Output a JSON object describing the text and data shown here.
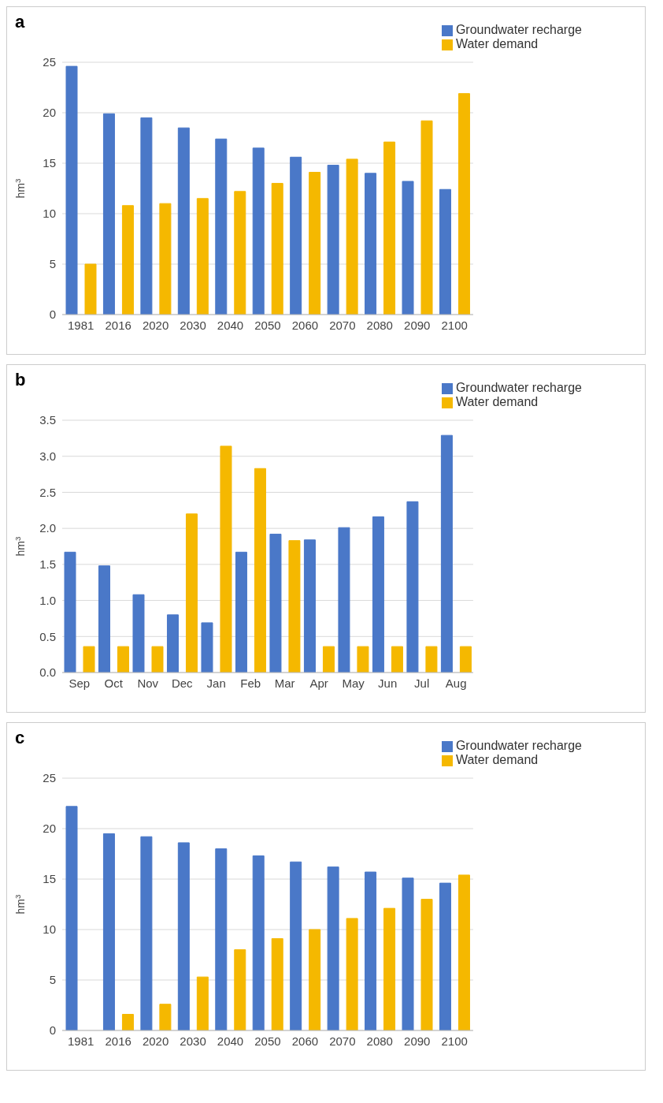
{
  "chart_data": [
    {
      "type": "bar",
      "title": "a",
      "ylabel": "hm$^{3}$",
      "categories": [
        "1981",
        "2016",
        "2020",
        "2030",
        "2040",
        "2050",
        "2060",
        "2070",
        "2080",
        "2090",
        "2100"
      ],
      "series": [
        {
          "name": "Groundwater recharge",
          "color": "#4a78c8",
          "values": [
            24.6,
            19.9,
            19.5,
            18.5,
            17.4,
            16.5,
            15.6,
            14.8,
            14.0,
            13.2,
            12.4
          ]
        },
        {
          "name": "Water demand",
          "color": "#f5b800",
          "values": [
            5.0,
            10.8,
            11.0,
            11.5,
            12.2,
            13.0,
            14.1,
            15.4,
            17.1,
            19.2,
            21.9
          ]
        }
      ],
      "ylim": [
        0,
        25
      ],
      "yticks": [
        0,
        5,
        10,
        15,
        20,
        25
      ],
      "grid": "y",
      "legend": "top right"
    },
    {
      "type": "bar",
      "title": "b",
      "ylabel": "hm$^{3}$",
      "categories": [
        "Sep",
        "Oct",
        "Nov",
        "Dec",
        "Jan",
        "Feb",
        "Mar",
        "Apr",
        "May",
        "Jun",
        "Jul",
        "Aug"
      ],
      "series": [
        {
          "name": "Groundwater recharge",
          "color": "#4a78c8",
          "values": [
            1.67,
            1.48,
            1.08,
            0.8,
            0.69,
            1.67,
            1.92,
            1.84,
            2.01,
            2.16,
            2.37,
            3.29
          ]
        },
        {
          "name": "Water demand",
          "color": "#f5b800",
          "values": [
            0.36,
            0.36,
            0.36,
            2.2,
            3.14,
            2.83,
            1.83,
            0.36,
            0.36,
            0.36,
            0.36,
            0.36
          ]
        }
      ],
      "ylim": [
        0,
        3.5
      ],
      "yticks": [
        {
          "value": 0,
          "label": "0.0"
        },
        0.5,
        {
          "value": 1,
          "label": "1.0"
        },
        1.5,
        {
          "value": 2,
          "label": "2.0"
        },
        2.5,
        {
          "value": 3,
          "label": "3.0"
        },
        3.5
      ],
      "grid": "y",
      "legend": "top right"
    },
    {
      "type": "bar",
      "title": "c",
      "ylabel": "hm$^{3}$",
      "categories": [
        "1981",
        "2016",
        "2020",
        "2030",
        "2040",
        "2050",
        "2060",
        "2070",
        "2080",
        "2090",
        "2100"
      ],
      "series": [
        {
          "name": "Groundwater recharge",
          "color": "#4a78c8",
          "values": [
            22.2,
            19.5,
            19.2,
            18.6,
            18.0,
            17.3,
            16.7,
            16.2,
            15.7,
            15.1,
            14.6
          ]
        },
        {
          "name": "Water demand",
          "color": "#f5b800",
          "values": [
            0,
            1.6,
            2.6,
            5.3,
            8.0,
            9.1,
            10.0,
            11.1,
            12.1,
            13.0,
            15.4
          ]
        }
      ],
      "ylim": [
        0,
        25
      ],
      "yticks": [
        0,
        5,
        10,
        15,
        20,
        25
      ],
      "grid": "y",
      "legend": "top right"
    }
  ]
}
